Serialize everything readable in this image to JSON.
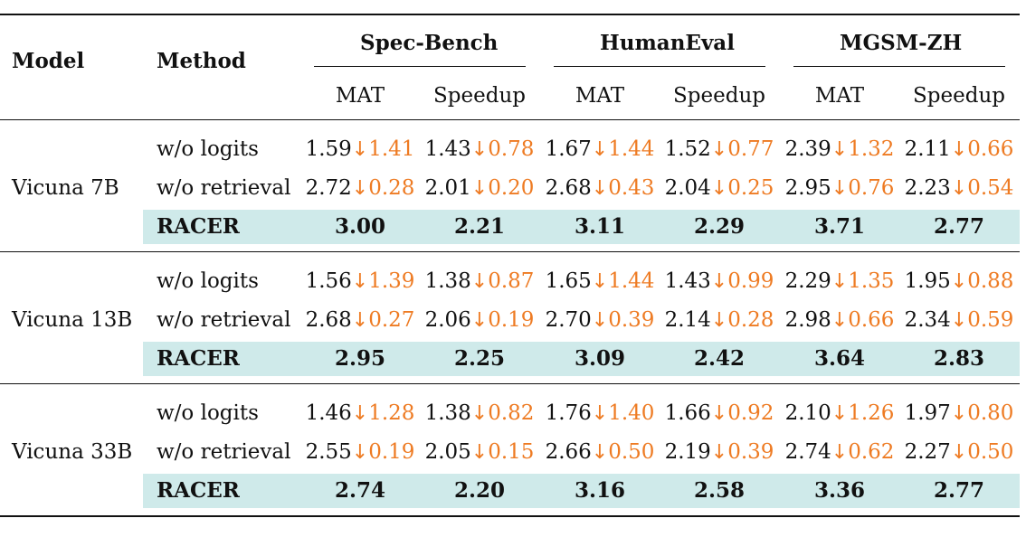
{
  "headers": {
    "model": "Model",
    "method": "Method",
    "groups": [
      "Spec-Bench",
      "HumanEval",
      "MGSM-ZH"
    ],
    "sub": [
      "MAT",
      "Speedup"
    ]
  },
  "accent_color": "#ee7b23",
  "highlight_color": "#cfeaea",
  "arrow_icon": "↓",
  "blocks": [
    {
      "model": "Vicuna 7B",
      "rows": [
        {
          "method": "w/o logits",
          "cells": [
            [
              "1.59",
              "1.41"
            ],
            [
              "1.43",
              "0.78"
            ],
            [
              "1.67",
              "1.44"
            ],
            [
              "1.52",
              "0.77"
            ],
            [
              "2.39",
              "1.32"
            ],
            [
              "2.11",
              "0.66"
            ]
          ]
        },
        {
          "method": "w/o retrieval",
          "cells": [
            [
              "2.72",
              "0.28"
            ],
            [
              "2.01",
              "0.20"
            ],
            [
              "2.68",
              "0.43"
            ],
            [
              "2.04",
              "0.25"
            ],
            [
              "2.95",
              "0.76"
            ],
            [
              "2.23",
              "0.54"
            ]
          ]
        },
        {
          "method": "RACER",
          "cells": [
            [
              "3.00"
            ],
            [
              "2.21"
            ],
            [
              "3.11"
            ],
            [
              "2.29"
            ],
            [
              "3.71"
            ],
            [
              "2.77"
            ]
          ]
        }
      ]
    },
    {
      "model": "Vicuna 13B",
      "rows": [
        {
          "method": "w/o logits",
          "cells": [
            [
              "1.56",
              "1.39"
            ],
            [
              "1.38",
              "0.87"
            ],
            [
              "1.65",
              "1.44"
            ],
            [
              "1.43",
              "0.99"
            ],
            [
              "2.29",
              "1.35"
            ],
            [
              "1.95",
              "0.88"
            ]
          ]
        },
        {
          "method": "w/o retrieval",
          "cells": [
            [
              "2.68",
              "0.27"
            ],
            [
              "2.06",
              "0.19"
            ],
            [
              "2.70",
              "0.39"
            ],
            [
              "2.14",
              "0.28"
            ],
            [
              "2.98",
              "0.66"
            ],
            [
              "2.34",
              "0.59"
            ]
          ]
        },
        {
          "method": "RACER",
          "cells": [
            [
              "2.95"
            ],
            [
              "2.25"
            ],
            [
              "3.09"
            ],
            [
              "2.42"
            ],
            [
              "3.64"
            ],
            [
              "2.83"
            ]
          ]
        }
      ]
    },
    {
      "model": "Vicuna 33B",
      "rows": [
        {
          "method": "w/o logits",
          "cells": [
            [
              "1.46",
              "1.28"
            ],
            [
              "1.38",
              "0.82"
            ],
            [
              "1.76",
              "1.40"
            ],
            [
              "1.66",
              "0.92"
            ],
            [
              "2.10",
              "1.26"
            ],
            [
              "1.97",
              "0.80"
            ]
          ]
        },
        {
          "method": "w/o retrieval",
          "cells": [
            [
              "2.55",
              "0.19"
            ],
            [
              "2.05",
              "0.15"
            ],
            [
              "2.66",
              "0.50"
            ],
            [
              "2.19",
              "0.39"
            ],
            [
              "2.74",
              "0.62"
            ],
            [
              "2.27",
              "0.50"
            ]
          ]
        },
        {
          "method": "RACER",
          "cells": [
            [
              "2.74"
            ],
            [
              "2.20"
            ],
            [
              "3.16"
            ],
            [
              "2.58"
            ],
            [
              "3.36"
            ],
            [
              "2.77"
            ]
          ]
        }
      ]
    }
  ]
}
